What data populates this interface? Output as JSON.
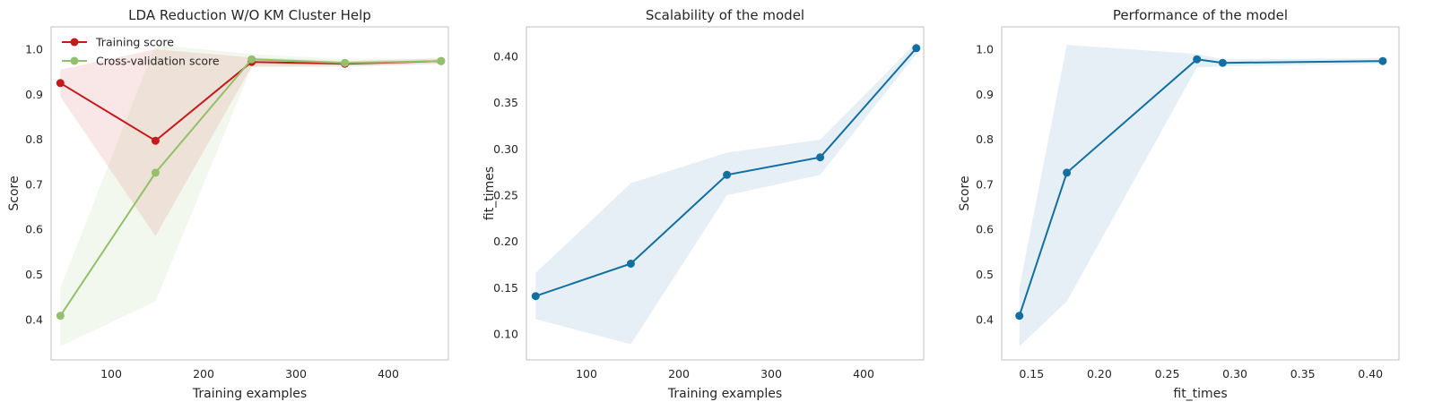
{
  "chart_data": [
    {
      "type": "line",
      "title": "LDA Reduction W/O KM Cluster Help",
      "xlabel": "Training examples",
      "ylabel": "Score",
      "xlim": [
        35,
        465
      ],
      "ylim": [
        0.31,
        1.05
      ],
      "xticks": [
        100,
        200,
        300,
        400
      ],
      "yticks": [
        0.4,
        0.5,
        0.6,
        0.7,
        0.8,
        0.9,
        1.0
      ],
      "xtick_labels": [
        "100",
        "200",
        "300",
        "400"
      ],
      "ytick_labels": [
        "0.4",
        "0.5",
        "0.6",
        "0.7",
        "0.8",
        "0.9",
        "1.0"
      ],
      "grid": false,
      "legend": "top-left",
      "x": [
        45,
        148,
        252,
        353,
        457
      ],
      "series": [
        {
          "name": "Training score",
          "color": "#c41a1a",
          "values": [
            0.925,
            0.797,
            0.972,
            0.968,
            0.974
          ],
          "band_low": [
            0.895,
            0.585,
            0.962,
            0.962,
            0.968
          ],
          "band_high": [
            0.955,
            1.0,
            0.982,
            0.974,
            0.98
          ]
        },
        {
          "name": "Cross-validation score",
          "color": "#93c06a",
          "values": [
            0.408,
            0.726,
            0.978,
            0.97,
            0.974
          ],
          "band_low": [
            0.34,
            0.44,
            0.96,
            0.962,
            0.968
          ],
          "band_high": [
            0.47,
            1.01,
            0.99,
            0.978,
            0.98
          ]
        }
      ]
    },
    {
      "type": "line",
      "title": "Scalability of the model",
      "xlabel": "Training examples",
      "ylabel": "fit_times",
      "xlim": [
        35,
        465
      ],
      "ylim": [
        0.072,
        0.432
      ],
      "xticks": [
        100,
        200,
        300,
        400
      ],
      "yticks": [
        0.1,
        0.15,
        0.2,
        0.25,
        0.3,
        0.35,
        0.4
      ],
      "xtick_labels": [
        "100",
        "200",
        "300",
        "400"
      ],
      "ytick_labels": [
        "0.10",
        "0.15",
        "0.20",
        "0.25",
        "0.30",
        "0.35",
        "0.40"
      ],
      "grid": false,
      "x": [
        45,
        148,
        252,
        353,
        457
      ],
      "series": [
        {
          "color": "#1170a0",
          "values": [
            0.141,
            0.176,
            0.272,
            0.291,
            0.409
          ],
          "band_low": [
            0.116,
            0.089,
            0.25,
            0.272,
            0.403
          ],
          "band_high": [
            0.166,
            0.263,
            0.296,
            0.31,
            0.415
          ]
        }
      ]
    },
    {
      "type": "line",
      "title": "Performance of the model",
      "xlabel": "fit_times",
      "ylabel": "Score",
      "xlim": [
        0.128,
        0.421
      ],
      "ylim": [
        0.31,
        1.05
      ],
      "xticks": [
        0.15,
        0.2,
        0.25,
        0.3,
        0.35,
        0.4
      ],
      "yticks": [
        0.4,
        0.5,
        0.6,
        0.7,
        0.8,
        0.9,
        1.0
      ],
      "xtick_labels": [
        "0.15",
        "0.20",
        "0.25",
        "0.30",
        "0.35",
        "0.40"
      ],
      "ytick_labels": [
        "0.4",
        "0.5",
        "0.6",
        "0.7",
        "0.8",
        "0.9",
        "1.0"
      ],
      "grid": false,
      "x": [
        0.141,
        0.176,
        0.272,
        0.291,
        0.409
      ],
      "series": [
        {
          "color": "#1170a0",
          "values": [
            0.408,
            0.726,
            0.978,
            0.97,
            0.974
          ],
          "band_low": [
            0.34,
            0.44,
            0.96,
            0.962,
            0.968
          ],
          "band_high": [
            0.47,
            1.01,
            0.99,
            0.978,
            0.98
          ]
        }
      ]
    }
  ]
}
